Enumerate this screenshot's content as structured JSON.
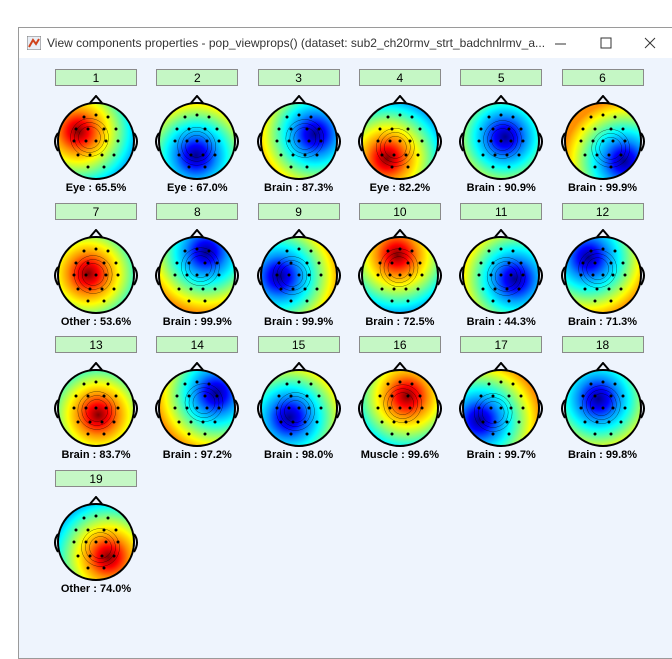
{
  "window": {
    "title": "View components properties - pop_viewprops() (dataset: sub2_ch20rmv_strt_badchnlrmv_a..."
  },
  "components": [
    {
      "button": "1",
      "label": "Eye : 65.5%"
    },
    {
      "button": "2",
      "label": "Eye : 67.0%"
    },
    {
      "button": "3",
      "label": "Brain : 87.3%"
    },
    {
      "button": "4",
      "label": "Eye : 82.2%"
    },
    {
      "button": "5",
      "label": "Brain : 90.9%"
    },
    {
      "button": "6",
      "label": "Brain : 99.9%"
    },
    {
      "button": "7",
      "label": "Other : 53.6%"
    },
    {
      "button": "8",
      "label": "Brain : 99.9%"
    },
    {
      "button": "9",
      "label": "Brain : 99.9%"
    },
    {
      "button": "10",
      "label": "Brain : 72.5%"
    },
    {
      "button": "11",
      "label": "Brain : 44.3%"
    },
    {
      "button": "12",
      "label": "Brain : 71.3%"
    },
    {
      "button": "13",
      "label": "Brain : 83.7%"
    },
    {
      "button": "14",
      "label": "Brain : 97.2%"
    },
    {
      "button": "15",
      "label": "Brain : 98.0%"
    },
    {
      "button": "16",
      "label": "Muscle : 99.6%"
    },
    {
      "button": "17",
      "label": "Brain : 99.7%"
    },
    {
      "button": "18",
      "label": "Brain : 99.8%"
    },
    {
      "button": "19",
      "label": "Other : 74.0%"
    }
  ]
}
